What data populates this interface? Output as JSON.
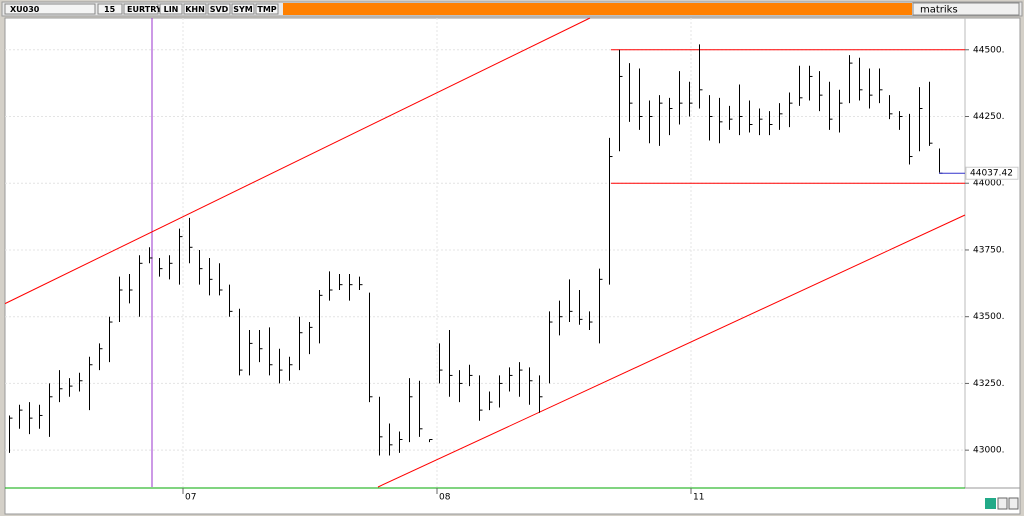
{
  "toolbar": {
    "symbol": "XU030",
    "period": "15",
    "currency": "EURTRY",
    "buttons": [
      "LIN",
      "KHN",
      "SVD",
      "SYM",
      "TMP"
    ],
    "brand": "matriks"
  },
  "chart_data": {
    "type": "ohlc",
    "high": [
      43130,
      43170,
      43180,
      43170,
      43250,
      43300,
      43270,
      43290,
      43350,
      43400,
      43500,
      43650,
      43660,
      43730,
      43760,
      43720,
      43730,
      43830,
      43870,
      43750,
      43720,
      43700,
      43620,
      43530,
      43450,
      43450,
      43460,
      43380,
      43350,
      43500,
      43480,
      43600,
      43670,
      43660,
      43660,
      43650,
      43590,
      43200,
      43100,
      43070,
      43270,
      43260,
      43040,
      43400,
      43450,
      43300,
      43320,
      43280,
      43220,
      43280,
      43310,
      43330,
      43310,
      43280,
      43520,
      43560,
      43640,
      43600,
      43520,
      43680,
      44170,
      44500,
      44450,
      44430,
      44310,
      44330,
      44320,
      44420,
      44380,
      44520,
      44330,
      44320,
      44290,
      44370,
      44310,
      44280,
      44270,
      44300,
      44340,
      44440,
      44440,
      44420,
      44380,
      44350,
      44480,
      44470,
      44430,
      44430,
      44330,
      44270,
      44260,
      44360,
      44380,
      44130
    ],
    "low": [
      42990,
      43080,
      43060,
      43080,
      43050,
      43180,
      43200,
      43220,
      43150,
      43300,
      43330,
      43480,
      43550,
      43500,
      43700,
      43650,
      43640,
      43620,
      43700,
      43620,
      43580,
      43580,
      43500,
      43280,
      43280,
      43330,
      43280,
      43250,
      43260,
      43300,
      43360,
      43400,
      43560,
      43600,
      43560,
      43600,
      43180,
      42980,
      42980,
      42990,
      43030,
      43050,
      43030,
      43250,
      43200,
      43180,
      43240,
      43110,
      43150,
      43160,
      43220,
      43200,
      43170,
      43140,
      43250,
      43430,
      43480,
      43470,
      43450,
      43400,
      43620,
      44120,
      44230,
      44200,
      44150,
      44140,
      44180,
      44220,
      44250,
      44280,
      44160,
      44150,
      44200,
      44180,
      44190,
      44180,
      44180,
      44200,
      44210,
      44290,
      44310,
      44270,
      44200,
      44190,
      44300,
      44310,
      44280,
      44300,
      44240,
      44200,
      44070,
      44120,
      44140,
      44040
    ],
    "close": [
      43120,
      43150,
      43120,
      43130,
      43200,
      43230,
      43240,
      43260,
      43320,
      43380,
      43480,
      43600,
      43600,
      43700,
      43720,
      43680,
      43700,
      43800,
      43760,
      43680,
      43640,
      43600,
      43520,
      43300,
      43400,
      43380,
      43320,
      43300,
      43320,
      43440,
      43460,
      43580,
      43600,
      43620,
      43620,
      43620,
      43200,
      43050,
      43020,
      43040,
      43200,
      43080,
      43040,
      43300,
      43280,
      43250,
      43280,
      43150,
      43180,
      43250,
      43280,
      43300,
      43260,
      43200,
      43480,
      43500,
      43520,
      43490,
      43480,
      43640,
      44100,
      44400,
      44300,
      44250,
      44250,
      44300,
      44280,
      44300,
      44300,
      44350,
      44250,
      44230,
      44240,
      44250,
      44220,
      44240,
      44220,
      44260,
      44300,
      44320,
      44400,
      44330,
      44240,
      44300,
      44450,
      44350,
      44330,
      44350,
      44260,
      44250,
      44100,
      44280,
      44150,
      44037.42
    ],
    "last_price": 44037.42,
    "xlim": [
      -0.4,
      95.6
    ],
    "xticks": [
      {
        "value": 17.4,
        "label": "07"
      },
      {
        "value": 42.8,
        "label": "08"
      },
      {
        "value": 68.2,
        "label": "11"
      }
    ],
    "ylim": [
      42862,
      44619
    ],
    "yticks": [
      {
        "value": 43000,
        "label": "43000."
      },
      {
        "value": 43250,
        "label": "43250."
      },
      {
        "value": 43500,
        "label": "43500."
      },
      {
        "value": 43750,
        "label": "43750."
      },
      {
        "value": 44000,
        "label": "44000."
      },
      {
        "value": 44250,
        "label": "44250."
      },
      {
        "value": 44500,
        "label": "44500."
      }
    ],
    "grid": true,
    "color": "#000000",
    "trend_lines": [
      [
        [
          -0.4,
          43549
        ],
        [
          58.1,
          44619
        ]
      ],
      [
        [
          36.9,
          42862
        ],
        [
          95.6,
          43881
        ]
      ]
    ],
    "horizontal_lines": {
      "start": 60.2,
      "values": [
        44500,
        44000
      ]
    },
    "vertical_line": 14.3,
    "line_color": "#ff0000",
    "vertical_color": "#9933cc",
    "last_color": "#3333cc"
  }
}
